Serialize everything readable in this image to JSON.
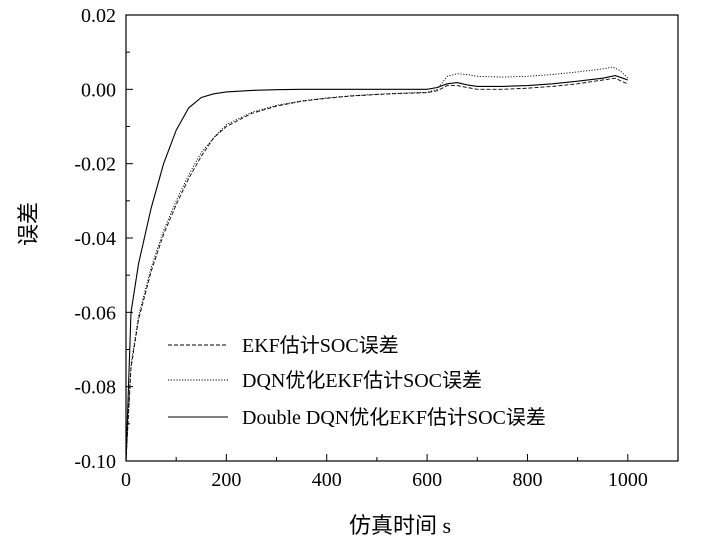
{
  "chart_data": {
    "type": "line",
    "xlabel": "仿真时间  s",
    "ylabel": "误差",
    "xlim": [
      0,
      1100
    ],
    "ylim": [
      -0.1,
      0.02
    ],
    "xticks": [
      0,
      200,
      400,
      600,
      800,
      1000
    ],
    "xtick_labels": [
      "0",
      "200",
      "400",
      "600",
      "800",
      "1000"
    ],
    "yticks": [
      0.02,
      0.0,
      -0.02,
      -0.04,
      -0.06,
      -0.08,
      -0.1
    ],
    "ytick_labels": [
      "0.02",
      "0.00",
      "-0.02",
      "-0.04",
      "-0.06",
      "-0.08",
      "-0.10"
    ],
    "grid": false,
    "legend_position": "bottom-right",
    "series": [
      {
        "name": "EKF估计SOC误差",
        "style": "dashed",
        "x": [
          0,
          10,
          25,
          50,
          75,
          100,
          125,
          150,
          175,
          200,
          250,
          300,
          350,
          400,
          450,
          500,
          550,
          600,
          620,
          640,
          660,
          680,
          700,
          750,
          800,
          850,
          900,
          950,
          975,
          990,
          1000
        ],
        "y": [
          -0.1,
          -0.075,
          -0.062,
          -0.049,
          -0.039,
          -0.031,
          -0.024,
          -0.018,
          -0.013,
          -0.01,
          -0.0065,
          -0.0045,
          -0.0032,
          -0.0024,
          -0.0018,
          -0.0014,
          -0.0011,
          -0.0009,
          -0.0004,
          0.001,
          0.001,
          0.0005,
          0.0,
          0.0,
          0.0003,
          0.0008,
          0.0015,
          0.0025,
          0.003,
          0.002,
          0.0015
        ]
      },
      {
        "name": "DQN优化EKF估计SOC误差",
        "style": "dotted",
        "x": [
          0,
          10,
          25,
          50,
          75,
          100,
          125,
          150,
          175,
          200,
          250,
          300,
          350,
          400,
          450,
          500,
          550,
          600,
          620,
          640,
          660,
          680,
          700,
          750,
          800,
          850,
          900,
          950,
          970,
          985,
          1000
        ],
        "y": [
          -0.1,
          -0.074,
          -0.061,
          -0.048,
          -0.038,
          -0.03,
          -0.023,
          -0.017,
          -0.013,
          -0.0095,
          -0.0062,
          -0.0043,
          -0.0031,
          -0.0023,
          -0.0017,
          -0.0013,
          -0.001,
          -0.0008,
          0.0,
          0.0035,
          0.0042,
          0.004,
          0.0035,
          0.0033,
          0.0035,
          0.004,
          0.0047,
          0.0055,
          0.006,
          0.005,
          0.003
        ]
      },
      {
        "name": "Double DQN优化EKF估计SOC误差",
        "style": "solid",
        "x": [
          0,
          10,
          25,
          50,
          75,
          100,
          125,
          150,
          175,
          200,
          250,
          300,
          350,
          400,
          450,
          500,
          550,
          600,
          620,
          640,
          660,
          680,
          700,
          750,
          800,
          850,
          900,
          950,
          975,
          990,
          1000
        ],
        "y": [
          -0.1,
          -0.06,
          -0.047,
          -0.032,
          -0.02,
          -0.011,
          -0.005,
          -0.0022,
          -0.0012,
          -0.0007,
          -0.0003,
          -0.0001,
          0.0,
          0.0,
          0.0,
          0.0,
          0.0,
          0.0,
          0.0005,
          0.0015,
          0.0018,
          0.0012,
          0.0008,
          0.0008,
          0.001,
          0.0015,
          0.0022,
          0.003,
          0.0037,
          0.003,
          0.0025
        ]
      }
    ]
  }
}
